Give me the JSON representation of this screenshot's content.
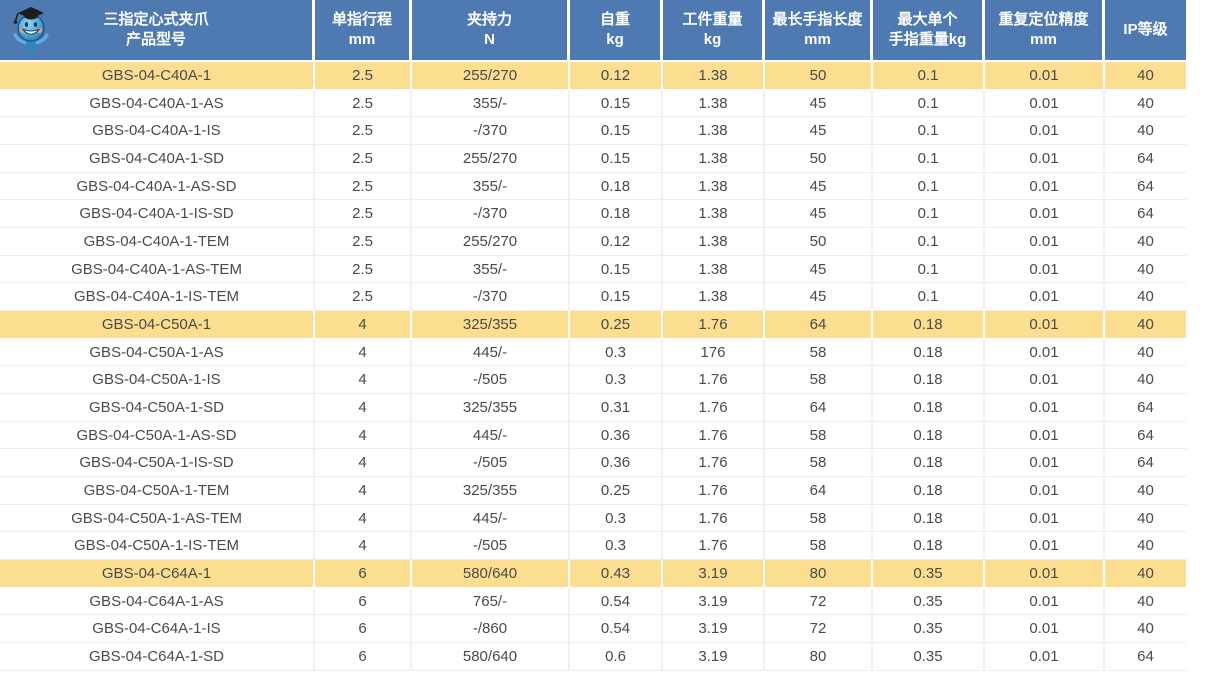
{
  "icons": {
    "mascot": "graduate-robot-mascot-icon"
  },
  "colors": {
    "header_bg": "#4E79B1",
    "header_text": "#FFFFFF",
    "highlight_row_bg": "#FBDE90",
    "row_bg": "#FFFFFF",
    "row_text": "#4A4A4A",
    "grid_line": "#ECECEC"
  },
  "header": {
    "columns": [
      {
        "id": "model",
        "line1": "三指定心式夹爪",
        "line2": "产品型号"
      },
      {
        "id": "stroke",
        "line1": "单指行程",
        "line2": "mm"
      },
      {
        "id": "force",
        "line1": "夹持力",
        "line2": "N"
      },
      {
        "id": "self_weight",
        "line1": "自重",
        "line2": "kg"
      },
      {
        "id": "workpiece_weight",
        "line1": "工件重量",
        "line2": "kg"
      },
      {
        "id": "finger_length",
        "line1": "最长手指长度",
        "line2": "mm"
      },
      {
        "id": "finger_weight",
        "line1": "最大单个",
        "line2": "手指重量kg"
      },
      {
        "id": "precision",
        "line1": "重复定位精度",
        "line2": "mm"
      },
      {
        "id": "ip",
        "line1": "IP等级",
        "line2": ""
      }
    ]
  },
  "rows": [
    {
      "model": "GBS-04-C40A-1",
      "stroke": "2.5",
      "force": "255/270",
      "self_weight": "0.12",
      "workpiece_weight": "1.38",
      "finger_length": "50",
      "finger_weight": "0.1",
      "precision": "0.01",
      "ip": "40",
      "highlight": true
    },
    {
      "model": "GBS-04-C40A-1-AS",
      "stroke": "2.5",
      "force": "355/-",
      "self_weight": "0.15",
      "workpiece_weight": "1.38",
      "finger_length": "45",
      "finger_weight": "0.1",
      "precision": "0.01",
      "ip": "40",
      "highlight": false
    },
    {
      "model": "GBS-04-C40A-1-IS",
      "stroke": "2.5",
      "force": "-/370",
      "self_weight": "0.15",
      "workpiece_weight": "1.38",
      "finger_length": "45",
      "finger_weight": "0.1",
      "precision": "0.01",
      "ip": "40",
      "highlight": false
    },
    {
      "model": "GBS-04-C40A-1-SD",
      "stroke": "2.5",
      "force": "255/270",
      "self_weight": "0.15",
      "workpiece_weight": "1.38",
      "finger_length": "50",
      "finger_weight": "0.1",
      "precision": "0.01",
      "ip": "64",
      "highlight": false
    },
    {
      "model": "GBS-04-C40A-1-AS-SD",
      "stroke": "2.5",
      "force": "355/-",
      "self_weight": "0.18",
      "workpiece_weight": "1.38",
      "finger_length": "45",
      "finger_weight": "0.1",
      "precision": "0.01",
      "ip": "64",
      "highlight": false
    },
    {
      "model": "GBS-04-C40A-1-IS-SD",
      "stroke": "2.5",
      "force": "-/370",
      "self_weight": "0.18",
      "workpiece_weight": "1.38",
      "finger_length": "45",
      "finger_weight": "0.1",
      "precision": "0.01",
      "ip": "64",
      "highlight": false
    },
    {
      "model": "GBS-04-C40A-1-TEM",
      "stroke": "2.5",
      "force": "255/270",
      "self_weight": "0.12",
      "workpiece_weight": "1.38",
      "finger_length": "50",
      "finger_weight": "0.1",
      "precision": "0.01",
      "ip": "40",
      "highlight": false
    },
    {
      "model": "GBS-04-C40A-1-AS-TEM",
      "stroke": "2.5",
      "force": "355/-",
      "self_weight": "0.15",
      "workpiece_weight": "1.38",
      "finger_length": "45",
      "finger_weight": "0.1",
      "precision": "0.01",
      "ip": "40",
      "highlight": false
    },
    {
      "model": "GBS-04-C40A-1-IS-TEM",
      "stroke": "2.5",
      "force": "-/370",
      "self_weight": "0.15",
      "workpiece_weight": "1.38",
      "finger_length": "45",
      "finger_weight": "0.1",
      "precision": "0.01",
      "ip": "40",
      "highlight": false
    },
    {
      "model": "GBS-04-C50A-1",
      "stroke": "4",
      "force": "325/355",
      "self_weight": "0.25",
      "workpiece_weight": "1.76",
      "finger_length": "64",
      "finger_weight": "0.18",
      "precision": "0.01",
      "ip": "40",
      "highlight": true
    },
    {
      "model": "GBS-04-C50A-1-AS",
      "stroke": "4",
      "force": "445/-",
      "self_weight": "0.3",
      "workpiece_weight": "176",
      "finger_length": "58",
      "finger_weight": "0.18",
      "precision": "0.01",
      "ip": "40",
      "highlight": false
    },
    {
      "model": "GBS-04-C50A-1-IS",
      "stroke": "4",
      "force": "-/505",
      "self_weight": "0.3",
      "workpiece_weight": "1.76",
      "finger_length": "58",
      "finger_weight": "0.18",
      "precision": "0.01",
      "ip": "40",
      "highlight": false
    },
    {
      "model": "GBS-04-C50A-1-SD",
      "stroke": "4",
      "force": "325/355",
      "self_weight": "0.31",
      "workpiece_weight": "1.76",
      "finger_length": "64",
      "finger_weight": "0.18",
      "precision": "0.01",
      "ip": "64",
      "highlight": false
    },
    {
      "model": "GBS-04-C50A-1-AS-SD",
      "stroke": "4",
      "force": "445/-",
      "self_weight": "0.36",
      "workpiece_weight": "1.76",
      "finger_length": "58",
      "finger_weight": "0.18",
      "precision": "0.01",
      "ip": "64",
      "highlight": false
    },
    {
      "model": "GBS-04-C50A-1-IS-SD",
      "stroke": "4",
      "force": "-/505",
      "self_weight": "0.36",
      "workpiece_weight": "1.76",
      "finger_length": "58",
      "finger_weight": "0.18",
      "precision": "0.01",
      "ip": "64",
      "highlight": false
    },
    {
      "model": "GBS-04-C50A-1-TEM",
      "stroke": "4",
      "force": "325/355",
      "self_weight": "0.25",
      "workpiece_weight": "1.76",
      "finger_length": "64",
      "finger_weight": "0.18",
      "precision": "0.01",
      "ip": "40",
      "highlight": false
    },
    {
      "model": "GBS-04-C50A-1-AS-TEM",
      "stroke": "4",
      "force": "445/-",
      "self_weight": "0.3",
      "workpiece_weight": "1.76",
      "finger_length": "58",
      "finger_weight": "0.18",
      "precision": "0.01",
      "ip": "40",
      "highlight": false
    },
    {
      "model": "GBS-04-C50A-1-IS-TEM",
      "stroke": "4",
      "force": "-/505",
      "self_weight": "0.3",
      "workpiece_weight": "1.76",
      "finger_length": "58",
      "finger_weight": "0.18",
      "precision": "0.01",
      "ip": "40",
      "highlight": false
    },
    {
      "model": "GBS-04-C64A-1",
      "stroke": "6",
      "force": "580/640",
      "self_weight": "0.43",
      "workpiece_weight": "3.19",
      "finger_length": "80",
      "finger_weight": "0.35",
      "precision": "0.01",
      "ip": "40",
      "highlight": true
    },
    {
      "model": "GBS-04-C64A-1-AS",
      "stroke": "6",
      "force": "765/-",
      "self_weight": "0.54",
      "workpiece_weight": "3.19",
      "finger_length": "72",
      "finger_weight": "0.35",
      "precision": "0.01",
      "ip": "40",
      "highlight": false
    },
    {
      "model": "GBS-04-C64A-1-IS",
      "stroke": "6",
      "force": "-/860",
      "self_weight": "0.54",
      "workpiece_weight": "3.19",
      "finger_length": "72",
      "finger_weight": "0.35",
      "precision": "0.01",
      "ip": "40",
      "highlight": false
    },
    {
      "model": "GBS-04-C64A-1-SD",
      "stroke": "6",
      "force": "580/640",
      "self_weight": "0.6",
      "workpiece_weight": "3.19",
      "finger_length": "80",
      "finger_weight": "0.35",
      "precision": "0.01",
      "ip": "64",
      "highlight": false
    }
  ]
}
